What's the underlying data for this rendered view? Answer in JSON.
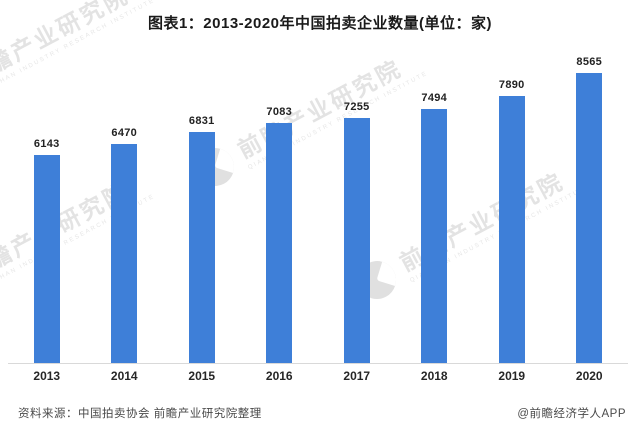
{
  "title": "图表1：2013-2020年中国拍卖企业数量(单位：家)",
  "chart_data": {
    "type": "bar",
    "categories": [
      "2013",
      "2014",
      "2015",
      "2016",
      "2017",
      "2018",
      "2019",
      "2020"
    ],
    "values": [
      6143,
      6470,
      6831,
      7083,
      7255,
      7494,
      7890,
      8565
    ],
    "title": "图表1：2013-2020年中国拍卖企业数量(单位：家)",
    "xlabel": "",
    "ylabel": "",
    "ylim": [
      0,
      9400
    ],
    "grid": false,
    "legend": "none",
    "data_labels": true,
    "bar_color": "#3e7fd8",
    "axis_line_color": "#d9d9d9"
  },
  "footer": {
    "source": "资料来源：中国拍卖协会 前瞻产业研究院整理",
    "credit": "@前瞻经济学人APP"
  },
  "watermark": {
    "logo": "qianzhan-logo",
    "text": "前瞻产业研究院",
    "subtext": "QIANZHAN INDUSTRY RESEARCH INSTITUTE"
  },
  "colors": {
    "bar": "#3e7fd8",
    "title_text": "#1a1a1a",
    "label_text": "#262626",
    "footer_text": "#4a4a4a",
    "axis_line": "#d9d9d9",
    "watermark": "#e3e3e3",
    "background": "#ffffff"
  }
}
